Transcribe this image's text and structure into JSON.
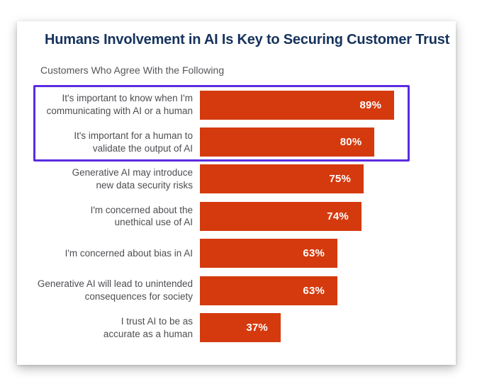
{
  "card": {
    "title": "Humans Involvement in AI Is Key to Securing Customer Trust",
    "subtitle": "Customers Who Agree With the Following"
  },
  "colors": {
    "bar": "#D43A0E",
    "title_text": "#16325C",
    "subtitle_text": "#55565A",
    "category_text": "#4D4E52",
    "value_text": "#FFFFFF",
    "highlight_border": "#5B2BE1",
    "card_background": "#FFFFFF"
  },
  "chart_data": {
    "type": "bar",
    "orientation": "horizontal",
    "title": "Humans Involvement in AI Is Key to Securing Customer Trust",
    "subtitle": "Customers Who Agree With the Following",
    "categories": [
      "It's important to know when I'm communicating with AI or a human",
      "It's important for a human to validate the output of AI",
      "Generative AI may introduce new data security risks",
      "I'm concerned about the unethical use of AI",
      "I'm concerned about bias in AI",
      "Generative AI will lead to unintended consequences for society",
      "I trust AI to be as accurate as a human"
    ],
    "category_lines": [
      [
        "It's important to know when I'm",
        "communicating with AI or a human"
      ],
      [
        "It's important for a human to",
        "validate the output of AI"
      ],
      [
        "Generative AI may introduce",
        "new data security risks"
      ],
      [
        "I'm concerned about the",
        "unethical use of AI"
      ],
      [
        "I'm concerned about bias in AI"
      ],
      [
        "Generative AI will lead to unintended",
        "consequences for society"
      ],
      [
        "I trust AI to be as",
        "accurate as a human"
      ]
    ],
    "values": [
      89,
      80,
      75,
      74,
      63,
      63,
      37
    ],
    "value_labels": [
      "89%",
      "80%",
      "75%",
      "74%",
      "63%",
      "63%",
      "37%"
    ],
    "value_format": "percent",
    "xlim": [
      0,
      100
    ],
    "highlighted_indices": [
      0,
      1
    ],
    "grid": false,
    "legend": false,
    "data_labels": "inside-end"
  }
}
